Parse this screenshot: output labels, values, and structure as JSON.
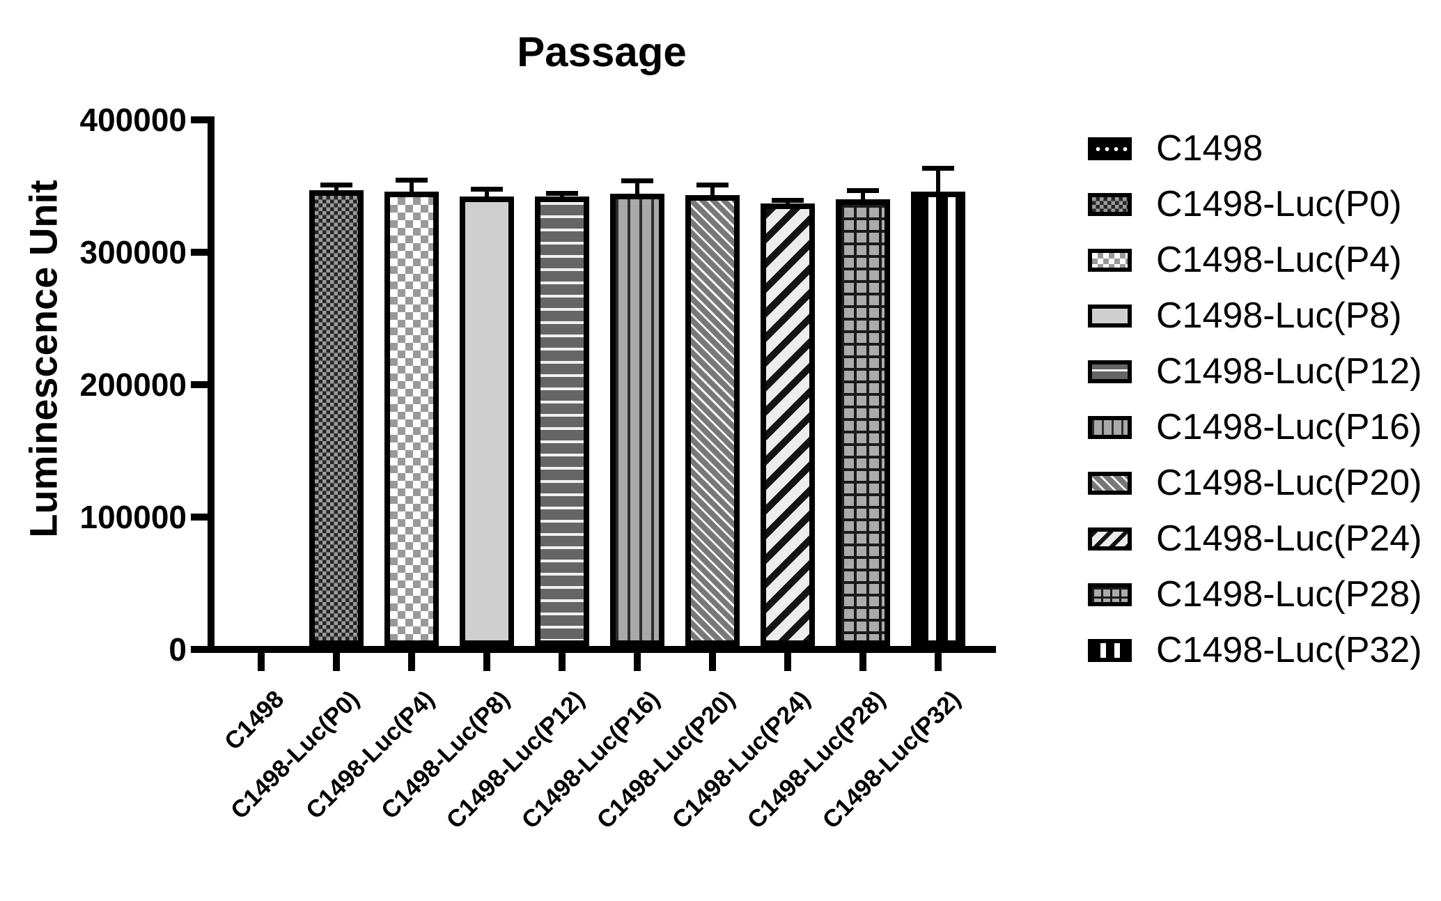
{
  "chart_data": {
    "type": "bar",
    "title": "Passage",
    "xlabel": "",
    "ylabel": "Luminescence Unit",
    "ylim": [
      0,
      400000
    ],
    "yticks": [
      0,
      100000,
      200000,
      300000,
      400000
    ],
    "ytick_labels": [
      "0",
      "100000",
      "200000",
      "300000",
      "400000"
    ],
    "grid": false,
    "legend_position": "right",
    "categories": [
      "C1498",
      "C1498-Luc(P0)",
      "C1498-Luc(P4)",
      "C1498-Luc(P8)",
      "C1498-Luc(P12)",
      "C1498-Luc(P16)",
      "C1498-Luc(P20)",
      "C1498-Luc(P24)",
      "C1498-Luc(P28)",
      "C1498-Luc(P32)"
    ],
    "values": [
      0,
      347000,
      346000,
      342000,
      342000,
      344000,
      343000,
      337000,
      340000,
      346000
    ],
    "errors_up": [
      0,
      4000,
      8500,
      6000,
      3000,
      10000,
      8000,
      2500,
      7000,
      17500
    ],
    "bar_styles": [
      {
        "pattern": "dots",
        "fg": "#ffffff",
        "bg": "#000000"
      },
      {
        "pattern": "checker-fine",
        "fg": "#262626",
        "bg": "#9b9b9b"
      },
      {
        "pattern": "checker-light",
        "fg": "#999999",
        "bg": "#ffffff"
      },
      {
        "pattern": "checker-dark",
        "fg": "#1f1f1f",
        "bg": "#cfcfcf"
      },
      {
        "pattern": "hlines",
        "fg": "#f0f0f0",
        "bg": "#656565"
      },
      {
        "pattern": "vlines",
        "fg": "#2e2e2e",
        "bg": "#a9a9a9"
      },
      {
        "pattern": "diag-left",
        "fg": "#f5f5f5",
        "bg": "#787878"
      },
      {
        "pattern": "diag-right",
        "fg": "#141414",
        "bg": "#ececec"
      },
      {
        "pattern": "grid",
        "fg": "#1a1a1a",
        "bg": "#ababab"
      },
      {
        "pattern": "vstripes",
        "fg": "#ffffff",
        "bg": "#000000"
      }
    ],
    "axis_color": "#000000"
  },
  "legend": {
    "items": [
      {
        "label": "C1498",
        "pattern": "dots"
      },
      {
        "label": "C1498-Luc(P0)",
        "pattern": "checker-fine"
      },
      {
        "label": "C1498-Luc(P4)",
        "pattern": "checker-light"
      },
      {
        "label": "C1498-Luc(P8)",
        "pattern": "checker-dark"
      },
      {
        "label": "C1498-Luc(P12)",
        "pattern": "hlines"
      },
      {
        "label": "C1498-Luc(P16)",
        "pattern": "vlines"
      },
      {
        "label": "C1498-Luc(P20)",
        "pattern": "diag-left"
      },
      {
        "label": "C1498-Luc(P24)",
        "pattern": "diag-right"
      },
      {
        "label": "C1498-Luc(P28)",
        "pattern": "grid"
      },
      {
        "label": "C1498-Luc(P32)",
        "pattern": "vstripes"
      }
    ]
  }
}
